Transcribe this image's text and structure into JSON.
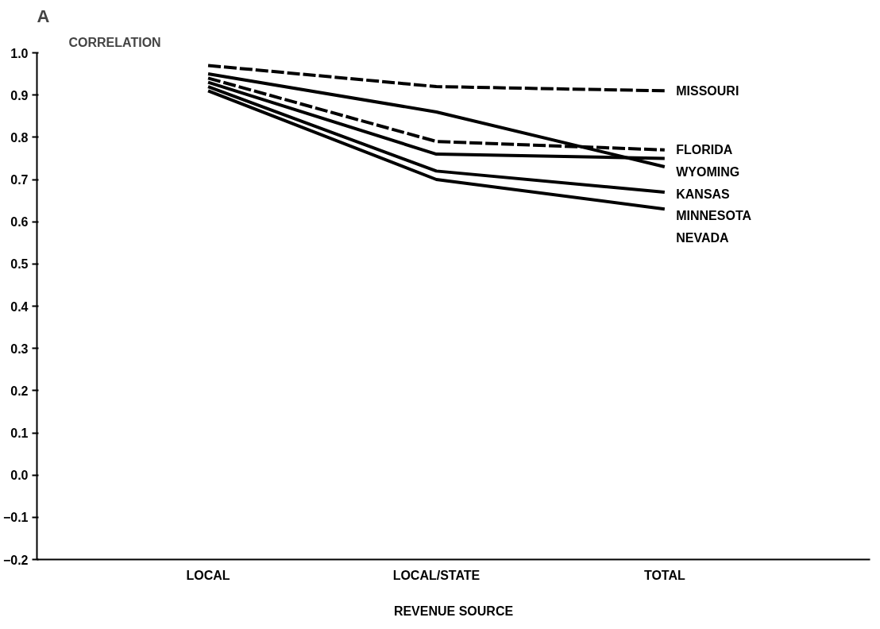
{
  "chart_data": {
    "type": "line",
    "title": "A",
    "ylabel": "CORRELATION",
    "xlabel": "REVENUE SOURCE",
    "categories": [
      "LOCAL",
      "LOCAL/STATE",
      "TOTAL"
    ],
    "series": [
      {
        "name": "MISSOURI",
        "color": "#000000",
        "line_style": "dashed",
        "values": [
          0.97,
          0.92,
          0.91
        ]
      },
      {
        "name": "FLORIDA",
        "color": "#000000",
        "line_style": "dashed",
        "values": [
          0.94,
          0.79,
          0.77
        ]
      },
      {
        "name": "KANSAS",
        "color": "#000000",
        "values": [
          0.95,
          0.86,
          0.73
        ]
      },
      {
        "name": "WYOMING",
        "color": "#000000",
        "values": [
          0.93,
          0.76,
          0.75
        ]
      },
      {
        "name": "MINNESOTA",
        "color": "#000000",
        "values": [
          0.92,
          0.72,
          0.67
        ]
      },
      {
        "name": "NEVADA",
        "color": "#000000",
        "values": [
          0.91,
          0.7,
          0.63
        ]
      }
    ],
    "ylim": [
      -0.2,
      1.0
    ],
    "yticks": [
      {
        "value": 1.0,
        "label": "1.0"
      },
      0.9,
      0.8,
      0.7,
      0.6,
      0.5,
      0.4,
      0.3,
      0.2,
      0.1,
      {
        "value": 0,
        "label": "0.0"
      },
      -0.1,
      -0.2
    ],
    "grid": false,
    "marker": "none",
    "line_style": "solid"
  }
}
